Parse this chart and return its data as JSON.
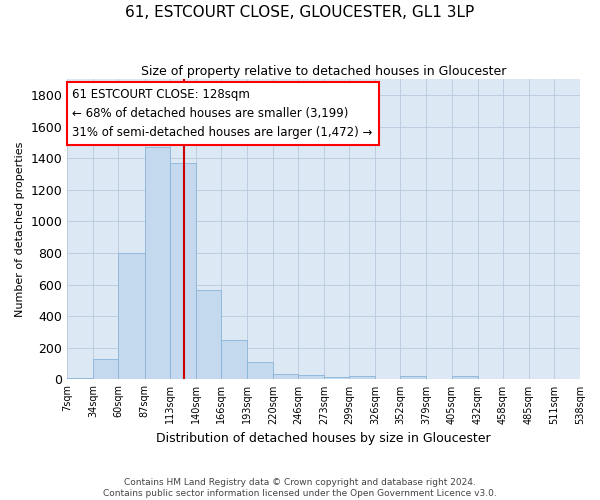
{
  "title": "61, ESTCOURT CLOSE, GLOUCESTER, GL1 3LP",
  "subtitle": "Size of property relative to detached houses in Gloucester",
  "xlabel": "Distribution of detached houses by size in Gloucester",
  "ylabel": "Number of detached properties",
  "bar_color": "#c5d9ee",
  "bar_edge_color": "#8ab4d8",
  "vline_color": "#cc0000",
  "vline_x": 128,
  "ann_line1": "61 ESTCOURT CLOSE: 128sqm",
  "ann_line2": "← 68% of detached houses are smaller (3,199)",
  "ann_line3": "31% of semi-detached houses are larger (1,472) →",
  "footer_line1": "Contains HM Land Registry data © Crown copyright and database right 2024.",
  "footer_line2": "Contains public sector information licensed under the Open Government Licence v3.0.",
  "bin_edges": [
    7,
    34,
    60,
    87,
    113,
    140,
    166,
    193,
    220,
    246,
    273,
    299,
    326,
    352,
    379,
    405,
    432,
    458,
    485,
    511,
    538
  ],
  "bar_heights": [
    10,
    130,
    800,
    1470,
    1370,
    565,
    250,
    110,
    35,
    30,
    15,
    20,
    0,
    20,
    0,
    20,
    0,
    0,
    0,
    0
  ],
  "ylim": [
    0,
    1900
  ],
  "yticks": [
    0,
    200,
    400,
    600,
    800,
    1000,
    1200,
    1400,
    1600,
    1800
  ],
  "background_color": "#ffffff",
  "ax_background": "#dde8f5",
  "grid_color": "#b8c8dc"
}
